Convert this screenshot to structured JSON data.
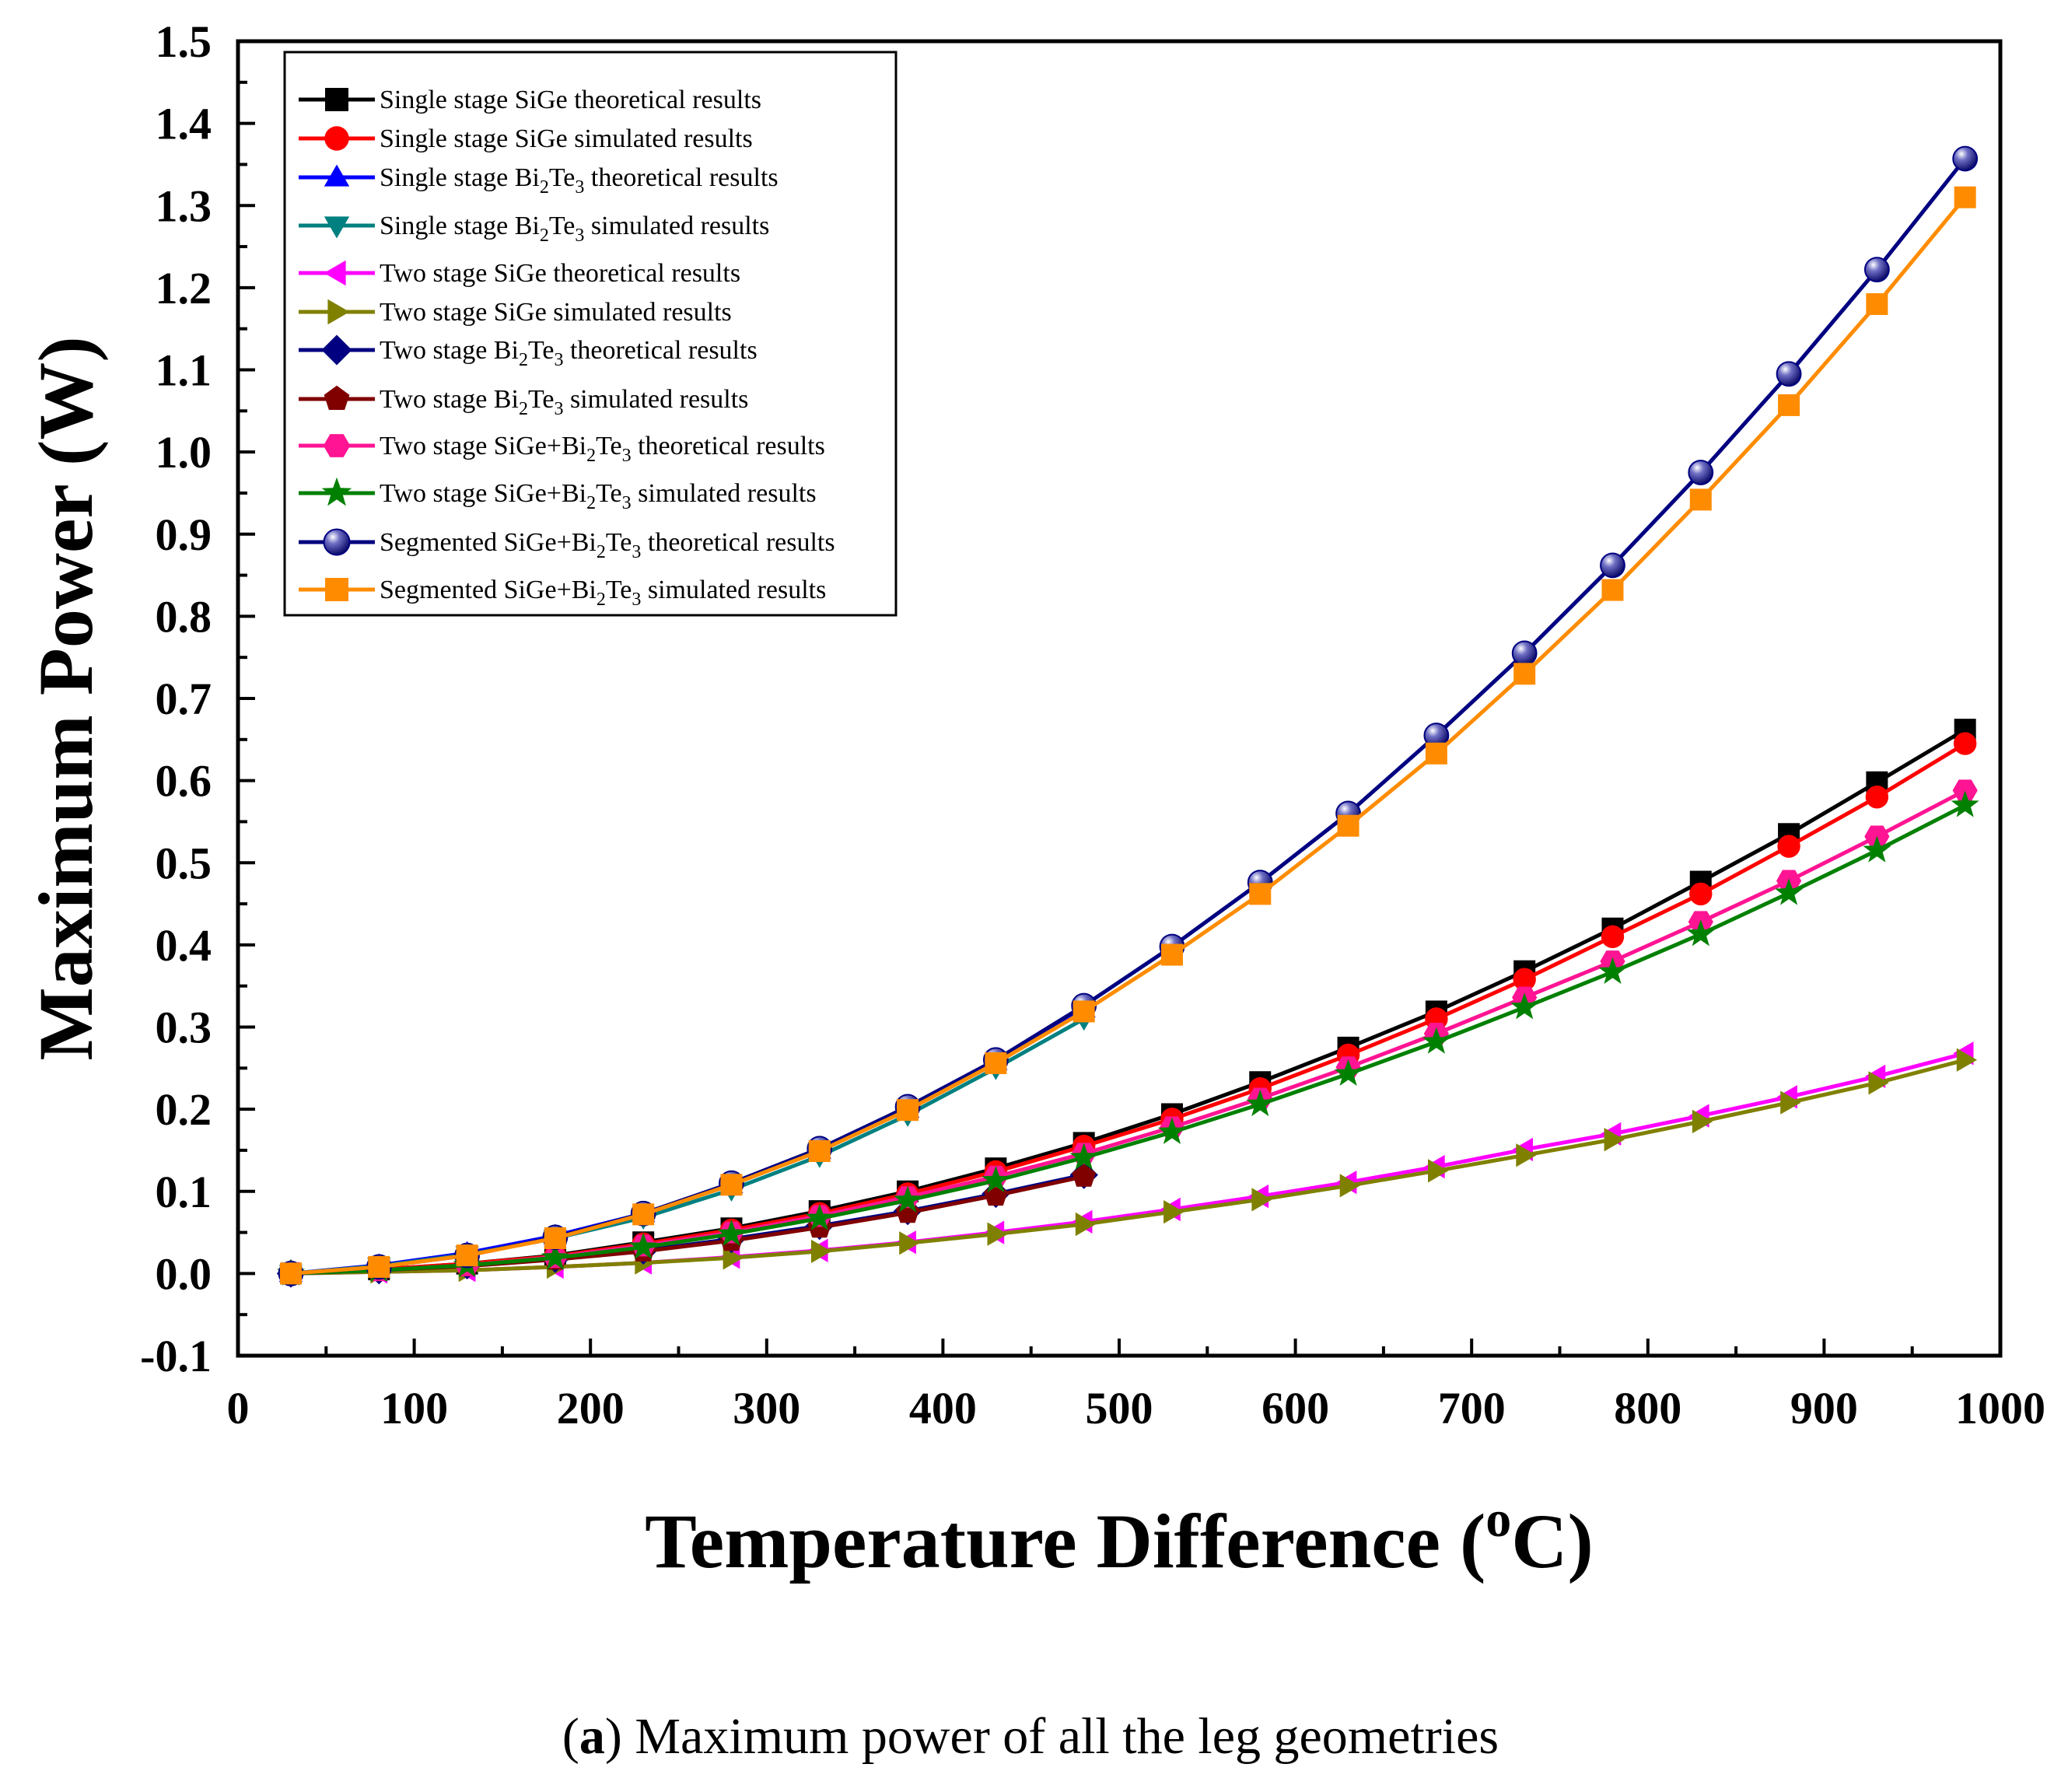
{
  "chart_data": {
    "type": "line",
    "xlabel": "Temperature Difference",
    "xlabel_unit_sup": "o",
    "xlabel_unit": "C",
    "ylabel": "Maximum Power (W)",
    "xlim": [
      0,
      1000
    ],
    "ylim": [
      -0.1,
      1.5
    ],
    "xticks": [
      0,
      100,
      200,
      300,
      400,
      500,
      600,
      700,
      800,
      900,
      1000
    ],
    "yticks": [
      "-0.1",
      "0.0",
      "0.1",
      "0.2",
      "0.3",
      "0.4",
      "0.5",
      "0.6",
      "0.7",
      "0.8",
      "0.9",
      "1.0",
      "1.1",
      "1.2",
      "1.3",
      "1.4",
      "1.5"
    ],
    "legend_position": "top-left",
    "series": [
      {
        "legend": [
          "Single stage SiGe theoretical results"
        ],
        "color": "#000000",
        "marker": "square",
        "x": [
          30,
          80,
          130,
          180,
          230,
          280,
          330,
          380,
          430,
          480,
          530,
          580,
          630,
          680,
          730,
          780,
          830,
          880,
          930,
          980
        ],
        "y": [
          0.0,
          0.005,
          0.012,
          0.022,
          0.038,
          0.055,
          0.076,
          0.1,
          0.128,
          0.159,
          0.194,
          0.233,
          0.275,
          0.319,
          0.368,
          0.42,
          0.477,
          0.535,
          0.598,
          0.662
        ]
      },
      {
        "legend": [
          "Single stage SiGe simulated results"
        ],
        "color": "#ff0000",
        "marker": "circle",
        "x": [
          30,
          80,
          130,
          180,
          230,
          280,
          330,
          380,
          430,
          480,
          530,
          580,
          630,
          680,
          730,
          780,
          830,
          880,
          930,
          980
        ],
        "y": [
          0.0,
          0.005,
          0.012,
          0.021,
          0.036,
          0.053,
          0.073,
          0.097,
          0.124,
          0.155,
          0.188,
          0.225,
          0.266,
          0.31,
          0.358,
          0.41,
          0.462,
          0.52,
          0.58,
          0.645
        ]
      },
      {
        "legend": [
          "Single stage Bi",
          "2",
          "Te",
          "3",
          " theoretical results"
        ],
        "color": "#0000ff",
        "marker": "triangle-up",
        "x": [
          30,
          80,
          130,
          180,
          230,
          280,
          330,
          380,
          430,
          480
        ],
        "y": [
          0.0,
          0.01,
          0.025,
          0.046,
          0.073,
          0.108,
          0.15,
          0.2,
          0.258,
          0.322
        ]
      },
      {
        "legend": [
          "Single stage Bi",
          "2",
          "Te",
          "3",
          " simulated results"
        ],
        "color": "#008080",
        "marker": "triangle-down",
        "x": [
          30,
          80,
          130,
          180,
          230,
          280,
          330,
          380,
          430,
          480
        ],
        "y": [
          0.0,
          0.009,
          0.023,
          0.043,
          0.068,
          0.102,
          0.143,
          0.193,
          0.25,
          0.31
        ]
      },
      {
        "legend": [
          "Two stage SiGe theoretical results"
        ],
        "color": "#ff00ff",
        "marker": "triangle-left",
        "x": [
          30,
          80,
          130,
          180,
          230,
          280,
          330,
          380,
          430,
          480,
          530,
          580,
          630,
          680,
          730,
          780,
          830,
          880,
          930,
          980
        ],
        "y": [
          0.0,
          0.002,
          0.004,
          0.008,
          0.013,
          0.02,
          0.028,
          0.038,
          0.05,
          0.063,
          0.078,
          0.094,
          0.111,
          0.13,
          0.151,
          0.17,
          0.192,
          0.215,
          0.24,
          0.268
        ]
      },
      {
        "legend": [
          "Two stage SiGe simulated results"
        ],
        "color": "#808000",
        "marker": "triangle-right",
        "x": [
          30,
          80,
          130,
          180,
          230,
          280,
          330,
          380,
          430,
          480,
          530,
          580,
          630,
          680,
          730,
          780,
          830,
          880,
          930,
          980
        ],
        "y": [
          0.0,
          0.002,
          0.004,
          0.008,
          0.013,
          0.019,
          0.027,
          0.037,
          0.048,
          0.06,
          0.075,
          0.09,
          0.107,
          0.125,
          0.144,
          0.163,
          0.185,
          0.208,
          0.232,
          0.26
        ]
      },
      {
        "legend": [
          "Two stage Bi",
          "2",
          "Te",
          "3",
          " theoretical results"
        ],
        "color": "#000080",
        "marker": "diamond",
        "x": [
          30,
          80,
          130,
          180,
          230,
          280,
          330,
          380,
          430,
          480
        ],
        "y": [
          0.0,
          0.004,
          0.01,
          0.018,
          0.028,
          0.042,
          0.058,
          0.076,
          0.097,
          0.12
        ]
      },
      {
        "legend": [
          "Two stage Bi",
          "2",
          "Te",
          "3",
          " simulated results"
        ],
        "color": "#800000",
        "marker": "pentagon",
        "x": [
          30,
          80,
          130,
          180,
          230,
          280,
          330,
          380,
          430,
          480
        ],
        "y": [
          0.0,
          0.004,
          0.009,
          0.017,
          0.027,
          0.04,
          0.056,
          0.074,
          0.095,
          0.118
        ]
      },
      {
        "legend": [
          "Two stage SiGe+Bi",
          "2",
          "Te",
          "3",
          " theoretical results"
        ],
        "color": "#ff1493",
        "marker": "hexagon",
        "x": [
          30,
          80,
          130,
          180,
          230,
          280,
          330,
          380,
          430,
          480,
          530,
          580,
          630,
          680,
          730,
          780,
          830,
          880,
          930,
          980
        ],
        "y": [
          0.0,
          0.004,
          0.01,
          0.02,
          0.034,
          0.05,
          0.07,
          0.093,
          0.118,
          0.146,
          0.178,
          0.213,
          0.251,
          0.292,
          0.336,
          0.38,
          0.428,
          0.478,
          0.532,
          0.588
        ]
      },
      {
        "legend": [
          "Two stage SiGe+Bi",
          "2",
          "Te",
          "3",
          " simulated results"
        ],
        "color": "#008000",
        "marker": "star",
        "x": [
          30,
          80,
          130,
          180,
          230,
          280,
          330,
          380,
          430,
          480,
          530,
          580,
          630,
          680,
          730,
          780,
          830,
          880,
          930,
          980
        ],
        "y": [
          0.0,
          0.004,
          0.01,
          0.019,
          0.032,
          0.048,
          0.067,
          0.089,
          0.113,
          0.141,
          0.172,
          0.206,
          0.243,
          0.282,
          0.324,
          0.367,
          0.413,
          0.463,
          0.515,
          0.57
        ]
      },
      {
        "legend": [
          "Segmented SiGe+Bi",
          "2",
          "Te",
          "3",
          " theoretical results"
        ],
        "color": "#000080",
        "marker": "sphere",
        "x": [
          30,
          80,
          130,
          180,
          230,
          280,
          330,
          380,
          430,
          480,
          530,
          580,
          630,
          680,
          730,
          780,
          830,
          880,
          930,
          980
        ],
        "y": [
          0.0,
          0.008,
          0.022,
          0.044,
          0.073,
          0.11,
          0.152,
          0.203,
          0.26,
          0.326,
          0.398,
          0.476,
          0.56,
          0.655,
          0.755,
          0.862,
          0.975,
          1.095,
          1.222,
          1.357
        ]
      },
      {
        "legend": [
          "Segmented SiGe+Bi",
          "2",
          "Te",
          "3",
          " simulated results"
        ],
        "color": "#ff8c00",
        "marker": "square",
        "x": [
          30,
          80,
          130,
          180,
          230,
          280,
          330,
          380,
          430,
          480,
          530,
          580,
          630,
          680,
          730,
          780,
          830,
          880,
          930,
          980
        ],
        "y": [
          0.0,
          0.008,
          0.022,
          0.043,
          0.072,
          0.108,
          0.149,
          0.199,
          0.256,
          0.319,
          0.388,
          0.462,
          0.545,
          0.633,
          0.73,
          0.832,
          0.942,
          1.057,
          1.18,
          1.31
        ]
      }
    ]
  },
  "caption": {
    "label": "a",
    "open": "(",
    "close": ")",
    "text": " Maximum power of all the leg geometries"
  }
}
